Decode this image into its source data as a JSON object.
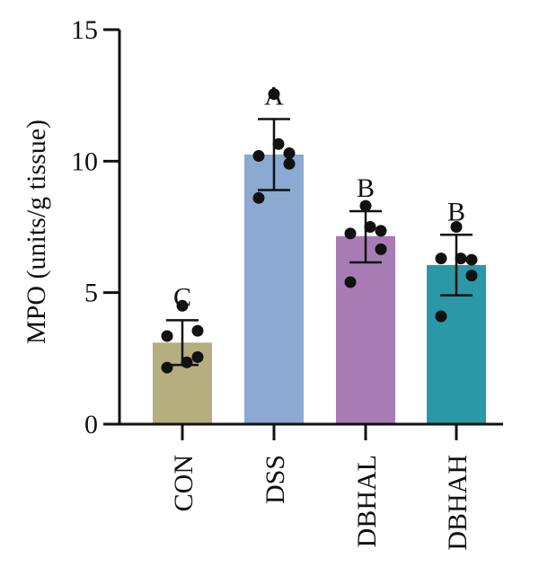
{
  "chart_data": {
    "type": "bar",
    "title": "",
    "xlabel": "",
    "ylabel": "MPO (units/g tissue)",
    "ylim": [
      0,
      15
    ],
    "yticks": [
      0,
      5,
      10,
      15
    ],
    "grid": false,
    "categories": [
      "CON",
      "DSS",
      "DBHAL",
      "DBHAH"
    ],
    "values": [
      3.1,
      10.25,
      7.15,
      6.05
    ],
    "error": [
      {
        "low": 2.25,
        "high": 3.95
      },
      {
        "low": 8.9,
        "high": 11.6
      },
      {
        "low": 6.15,
        "high": 8.1
      },
      {
        "low": 4.9,
        "high": 7.2
      }
    ],
    "points": [
      [
        4.5,
        3.55,
        3.35,
        2.55,
        2.15,
        2.35
      ],
      [
        12.55,
        10.3,
        10.2,
        9.9,
        8.6,
        10.65
      ],
      [
        8.3,
        7.35,
        7.25,
        6.65,
        5.4,
        7.5
      ],
      [
        7.5,
        6.25,
        6.3,
        5.65,
        4.1,
        6.3
      ]
    ],
    "significance": [
      "C",
      "A",
      "B",
      "B"
    ],
    "colors": [
      "#B5AE7E",
      "#8BA9D1",
      "#A77CB4",
      "#2B98A8"
    ]
  }
}
